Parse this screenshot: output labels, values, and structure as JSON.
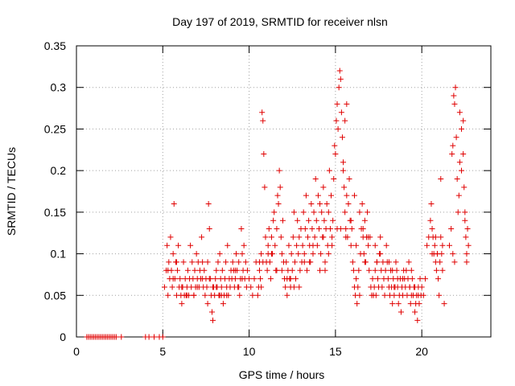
{
  "chart_data": {
    "type": "scatter",
    "title": "Day 197 of 2019, SRMTID for receiver nlsn",
    "xlabel": "GPS time / hours",
    "ylabel": "SRMTID / TECUs",
    "xlim": [
      0,
      24
    ],
    "ylim": [
      0,
      0.35
    ],
    "x_ticks": [
      0,
      5,
      10,
      15,
      20
    ],
    "x_tick_labels": [
      "0",
      "5",
      "10",
      "15",
      "20"
    ],
    "y_ticks": [
      0,
      0.05,
      0.1,
      0.15,
      0.2,
      0.25,
      0.3,
      0.35
    ],
    "y_tick_labels": [
      "0",
      "0.05",
      "0.1",
      "0.15",
      "0.2",
      "0.25",
      "0.3",
      "0.35"
    ],
    "grid": true,
    "legend": "none",
    "marker": "plus",
    "marker_color": "#e00000",
    "series": [
      {
        "x": [
          0.6,
          0.7,
          0.8,
          0.9,
          1.0,
          1.1,
          1.2,
          1.3,
          1.4,
          1.5,
          1.6,
          1.7,
          1.8,
          1.9,
          2.0,
          2.1,
          2.2,
          2.3,
          2.6,
          4.0,
          4.2,
          4.5,
          4.8,
          5.0,
          5.1,
          5.2,
          5.25,
          5.3,
          5.35,
          5.4,
          5.45,
          5.5,
          5.55,
          5.6,
          5.65,
          5.7,
          5.75,
          5.8,
          5.85,
          5.9,
          5.95,
          6.0,
          6.05,
          6.1,
          6.15,
          6.2,
          6.25,
          6.3,
          6.35,
          6.4,
          6.45,
          6.5,
          6.55,
          6.6,
          6.65,
          6.7,
          6.75,
          6.8,
          6.85,
          6.9,
          6.95,
          7.0,
          7.05,
          7.1,
          7.15,
          7.2,
          7.25,
          7.3,
          7.35,
          7.4,
          7.45,
          7.5,
          7.55,
          7.6,
          7.65,
          7.7,
          7.75,
          7.8,
          7.85,
          7.9,
          7.95,
          8.0,
          8.05,
          8.1,
          8.15,
          8.2,
          8.25,
          8.3,
          8.35,
          8.4,
          8.45,
          8.5,
          8.55,
          8.6,
          8.65,
          8.7,
          8.75,
          8.8,
          8.85,
          8.9,
          8.95,
          9.0,
          9.05,
          9.1,
          9.15,
          9.2,
          9.25,
          9.3,
          9.35,
          9.4,
          9.45,
          9.5,
          9.55,
          9.6,
          9.65,
          9.7,
          9.75,
          9.8,
          9.85,
          9.9,
          10.0,
          10.1,
          10.2,
          10.3,
          10.4,
          10.5,
          10.55,
          10.6,
          10.65,
          10.7,
          10.75,
          10.8,
          10.85,
          10.9,
          10.95,
          11.0,
          11.05,
          11.1,
          11.15,
          11.2,
          11.25,
          11.3,
          11.35,
          11.4,
          11.45,
          11.5,
          11.55,
          11.6,
          11.65,
          11.7,
          11.75,
          11.8,
          11.85,
          11.9,
          11.95,
          12.0,
          12.05,
          12.1,
          12.15,
          12.2,
          12.25,
          12.3,
          12.35,
          12.4,
          12.45,
          12.5,
          12.55,
          12.6,
          12.65,
          12.7,
          12.75,
          12.8,
          12.85,
          12.9,
          12.95,
          13.0,
          13.05,
          13.1,
          13.15,
          13.2,
          13.25,
          13.3,
          13.35,
          13.4,
          13.45,
          13.5,
          13.55,
          13.6,
          13.65,
          13.7,
          13.75,
          13.8,
          13.85,
          13.9,
          13.95,
          14.0,
          14.05,
          14.1,
          14.15,
          14.2,
          14.25,
          14.3,
          14.35,
          14.4,
          14.45,
          14.5,
          14.55,
          14.6,
          14.65,
          14.7,
          14.75,
          14.8,
          14.85,
          14.9,
          14.95,
          15.0,
          15.05,
          15.1,
          15.15,
          15.2,
          15.25,
          15.3,
          15.35,
          15.4,
          15.45,
          15.5,
          15.55,
          15.6,
          15.65,
          15.7,
          15.75,
          15.8,
          15.85,
          15.9,
          15.95,
          16.0,
          16.05,
          16.1,
          16.15,
          16.2,
          16.25,
          16.3,
          16.35,
          16.4,
          16.45,
          16.5,
          16.55,
          16.6,
          16.65,
          16.7,
          16.75,
          16.8,
          16.85,
          16.9,
          16.95,
          17.0,
          17.05,
          17.1,
          17.15,
          17.2,
          17.25,
          17.3,
          17.35,
          17.4,
          17.45,
          17.5,
          17.55,
          17.6,
          17.65,
          17.7,
          17.75,
          17.8,
          17.85,
          17.9,
          17.95,
          18.0,
          18.05,
          18.1,
          18.15,
          18.2,
          18.25,
          18.3,
          18.35,
          18.4,
          18.45,
          18.5,
          18.55,
          18.6,
          18.65,
          18.7,
          18.75,
          18.8,
          18.85,
          18.9,
          18.95,
          19.0,
          19.05,
          19.1,
          19.15,
          19.2,
          19.25,
          19.3,
          19.35,
          19.4,
          19.45,
          19.5,
          19.55,
          19.6,
          19.65,
          19.7,
          19.75,
          19.8,
          19.85,
          19.9,
          19.95,
          20.0,
          20.1,
          20.2,
          20.3,
          20.4,
          20.5,
          20.55,
          20.6,
          20.65,
          20.7,
          20.75,
          20.8,
          20.85,
          20.9,
          20.95,
          21.0,
          21.05,
          21.1,
          21.15,
          21.2,
          21.3,
          21.6,
          21.7,
          21.75,
          21.8,
          21.85,
          21.9,
          21.95,
          22.0,
          22.05,
          22.1,
          22.15,
          22.2,
          22.3,
          22.4,
          22.45,
          22.5,
          22.55,
          22.6,
          22.65,
          22.7,
          5.3,
          5.6,
          6.1,
          6.8,
          7.3,
          7.9,
          8.4,
          9.2,
          9.6,
          10.6,
          11.3,
          11.9,
          12.4,
          12.9,
          13.5,
          14.3,
          14.8,
          15.3,
          15.9,
          16.4,
          16.9,
          17.6,
          18.3,
          18.9,
          19.6,
          20.8,
          21.2,
          22.2,
          22.6,
          6.4,
          7.6,
          8.1,
          8.7,
          10.7,
          11.6,
          12.6,
          13.2,
          14.1,
          14.6,
          15.1,
          15.6,
          16.2,
          16.7,
          17.3,
          18.1,
          18.6,
          19.3,
          19.8,
          20.9,
          21.9,
          22.4,
          5.8,
          7.0,
          7.7,
          8.3,
          9.4,
          10.8,
          11.1,
          12.2,
          13.7,
          14.4,
          15.45,
          15.55,
          15.65,
          16.1,
          16.6,
          17.4,
          18.4,
          19.4,
          20.6,
          21.1,
          21.8,
          22.3,
          22.5
        ],
        "y": [
          0,
          0,
          0,
          0,
          0,
          0,
          0,
          0,
          0,
          0,
          0,
          0,
          0,
          0,
          0,
          0,
          0,
          0,
          0,
          0,
          0,
          0,
          0,
          0,
          0.06,
          0.08,
          0.11,
          0.05,
          0.09,
          0.07,
          0.12,
          0.08,
          0.06,
          0.1,
          0.16,
          0.07,
          0.09,
          0.05,
          0.08,
          0.11,
          0.06,
          0.07,
          0.05,
          0.04,
          0.06,
          0.09,
          0.05,
          0.07,
          0.05,
          0.06,
          0.08,
          0.05,
          0.07,
          0.11,
          0.06,
          0.09,
          0.07,
          0.05,
          0.08,
          0.06,
          0.1,
          0.07,
          0.09,
          0.06,
          0.08,
          0.07,
          0.12,
          0.09,
          0.06,
          0.08,
          0.05,
          0.07,
          0.06,
          0.09,
          0.16,
          0.13,
          0.07,
          0.05,
          0.03,
          0.02,
          0.06,
          0.05,
          0.07,
          0.08,
          0.06,
          0.09,
          0.05,
          0.1,
          0.07,
          0.06,
          0.08,
          0.04,
          0.05,
          0.07,
          0.09,
          0.06,
          0.11,
          0.05,
          0.07,
          0.06,
          0.08,
          0.07,
          0.09,
          0.08,
          0.06,
          0.07,
          0.1,
          0.08,
          0.06,
          0.09,
          0.05,
          0.07,
          0.13,
          0.1,
          0.08,
          0.11,
          0.07,
          0.09,
          0.06,
          0.08,
          0.07,
          0.06,
          0.05,
          0.07,
          0.09,
          0.05,
          0.06,
          0.08,
          0.07,
          0.1,
          0.27,
          0.26,
          0.22,
          0.18,
          0.12,
          0.09,
          0.08,
          0.11,
          0.13,
          0.09,
          0.07,
          0.12,
          0.1,
          0.14,
          0.15,
          0.11,
          0.08,
          0.13,
          0.17,
          0.16,
          0.2,
          0.18,
          0.12,
          0.1,
          0.14,
          0.09,
          0.07,
          0.06,
          0.09,
          0.05,
          0.08,
          0.11,
          0.07,
          0.06,
          0.1,
          0.08,
          0.12,
          0.15,
          0.09,
          0.07,
          0.11,
          0.14,
          0.1,
          0.12,
          0.08,
          0.13,
          0.09,
          0.11,
          0.15,
          0.1,
          0.13,
          0.17,
          0.08,
          0.12,
          0.14,
          0.11,
          0.09,
          0.16,
          0.13,
          0.1,
          0.15,
          0.12,
          0.19,
          0.14,
          0.11,
          0.17,
          0.13,
          0.16,
          0.1,
          0.15,
          0.12,
          0.18,
          0.14,
          0.09,
          0.13,
          0.16,
          0.11,
          0.15,
          0.2,
          0.13,
          0.17,
          0.12,
          0.14,
          0.19,
          0.23,
          0.22,
          0.26,
          0.28,
          0.25,
          0.3,
          0.32,
          0.31,
          0.27,
          0.24,
          0.2,
          0.18,
          0.15,
          0.13,
          0.17,
          0.12,
          0.16,
          0.19,
          0.14,
          0.11,
          0.13,
          0.09,
          0.08,
          0.06,
          0.05,
          0.07,
          0.04,
          0.06,
          0.08,
          0.05,
          0.1,
          0.13,
          0.16,
          0.12,
          0.1,
          0.14,
          0.09,
          0.12,
          0.15,
          0.11,
          0.08,
          0.12,
          0.06,
          0.05,
          0.07,
          0.05,
          0.06,
          0.08,
          0.05,
          0.09,
          0.07,
          0.06,
          0.1,
          0.12,
          0.08,
          0.06,
          0.09,
          0.07,
          0.05,
          0.08,
          0.11,
          0.09,
          0.07,
          0.06,
          0.05,
          0.08,
          0.06,
          0.04,
          0.07,
          0.05,
          0.06,
          0.09,
          0.08,
          0.06,
          0.04,
          0.05,
          0.07,
          0.03,
          0.06,
          0.05,
          0.08,
          0.07,
          0.06,
          0.08,
          0.05,
          0.07,
          0.09,
          0.06,
          0.04,
          0.08,
          0.07,
          0.05,
          0.06,
          0.03,
          0.04,
          0.05,
          0.02,
          0.06,
          0.04,
          0.07,
          0.05,
          0.06,
          0.05,
          0.07,
          0.11,
          0.12,
          0.14,
          0.16,
          0.13,
          0.12,
          0.1,
          0.11,
          0.09,
          0.08,
          0.1,
          0.07,
          0.05,
          0.09,
          0.12,
          0.1,
          0.08,
          0.04,
          0.11,
          0.13,
          0.22,
          0.23,
          0.29,
          0.28,
          0.3,
          0.24,
          0.19,
          0.15,
          0.17,
          0.27,
          0.25,
          0.22,
          0.18,
          0.14,
          0.12,
          0.1,
          0.13,
          0.11,
          0.08,
          0.07,
          0.06,
          0.05,
          0.07,
          0.06,
          0.05,
          0.08,
          0.07,
          0.09,
          0.1,
          0.08,
          0.07,
          0.06,
          0.09,
          0.12,
          0.11,
          0.13,
          0.14,
          0.15,
          0.12,
          0.1,
          0.08,
          0.07,
          0.06,
          0.12,
          0.11,
          0.21,
          0.09,
          0.05,
          0.04,
          0.06,
          0.05,
          0.06,
          0.08,
          0.06,
          0.09,
          0.08,
          0.1,
          0.13,
          0.12,
          0.11,
          0.09,
          0.11,
          0.09,
          0.07,
          0.06,
          0.05,
          0.1,
          0.09,
          0.26,
          0.09,
          0.06,
          0.07,
          0.05,
          0.06,
          0.09,
          0.1,
          0.07,
          0.11,
          0.08,
          0.21,
          0.26,
          0.28,
          0.17,
          0.13,
          0.09,
          0.06,
          0.05,
          0.1,
          0.19,
          0.1,
          0.2,
          0.15
        ]
      }
    ]
  }
}
